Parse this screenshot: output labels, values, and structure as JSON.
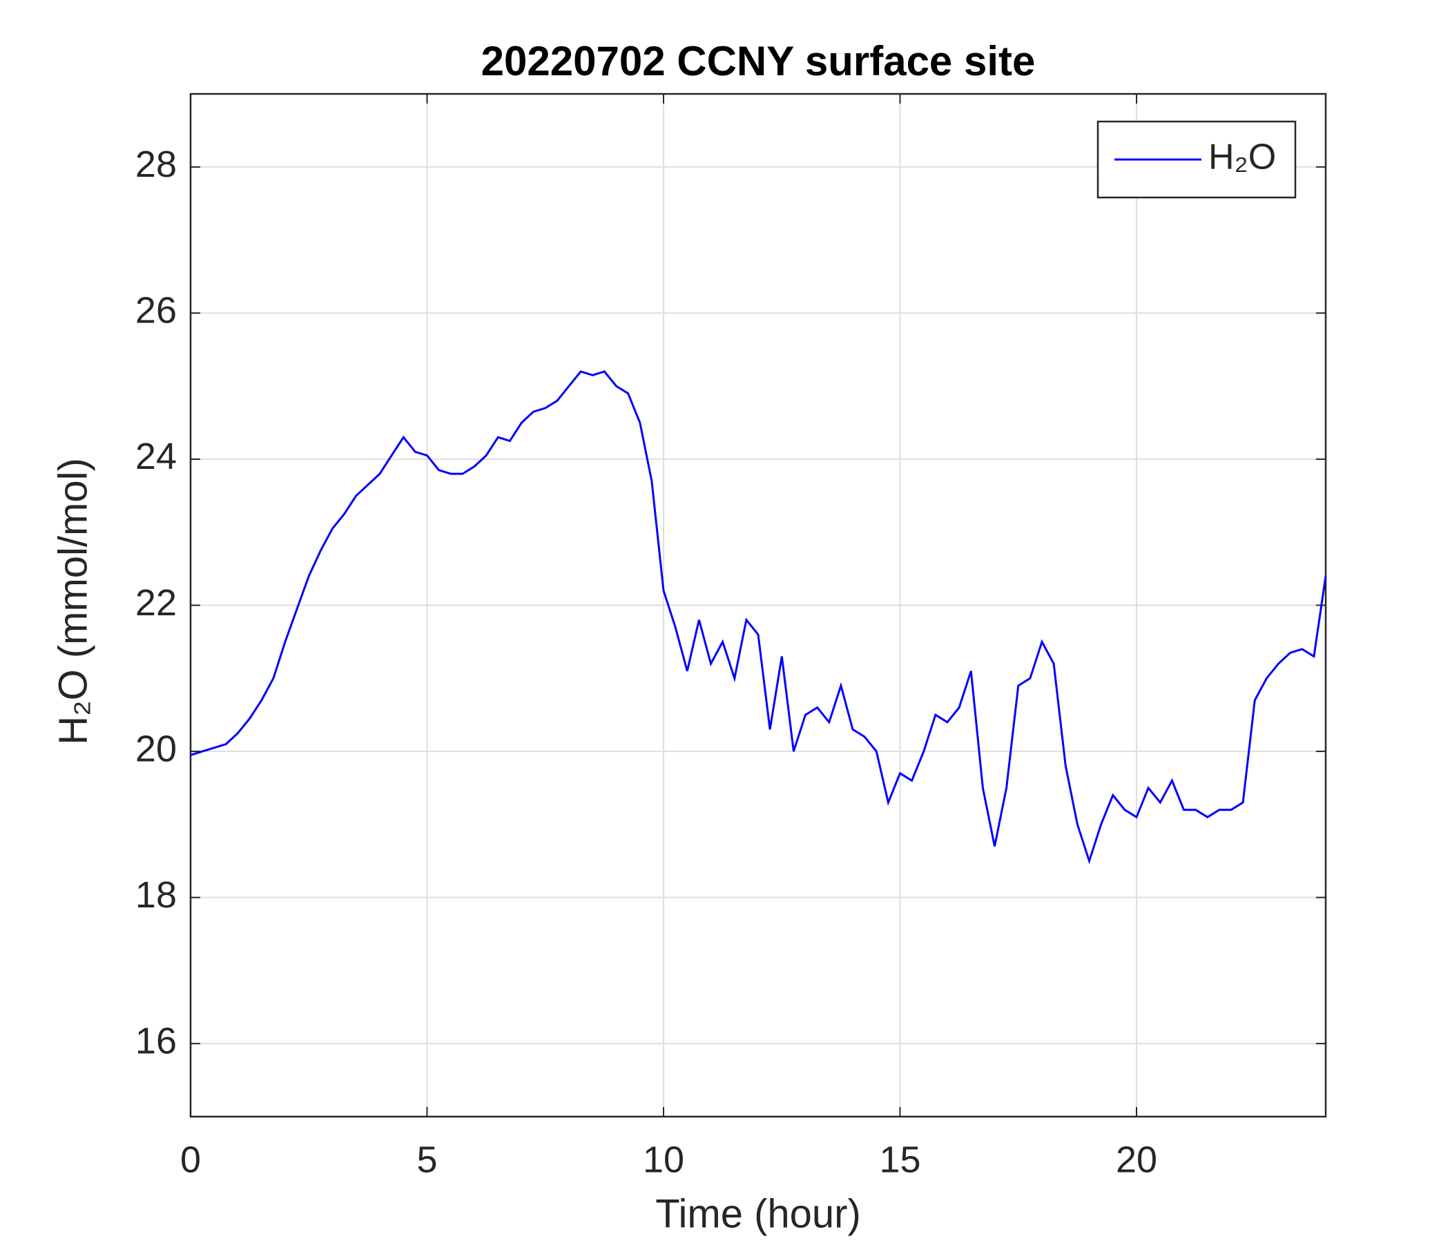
{
  "chart_data": {
    "type": "line",
    "title": "20220702 CCNY surface site",
    "x_label": "Time (hour)",
    "y_label": "H₂O (mmol/mol)",
    "x": [
      0,
      0.25,
      0.5,
      0.75,
      1,
      1.25,
      1.5,
      1.75,
      2,
      2.25,
      2.5,
      2.75,
      3,
      3.25,
      3.5,
      3.75,
      4,
      4.25,
      4.5,
      4.75,
      5,
      5.25,
      5.5,
      5.75,
      6,
      6.25,
      6.5,
      6.75,
      7,
      7.25,
      7.5,
      7.75,
      8,
      8.25,
      8.5,
      8.75,
      9,
      9.25,
      9.5,
      9.75,
      10,
      10.25,
      10.5,
      10.75,
      11,
      11.25,
      11.5,
      11.75,
      12,
      12.25,
      12.5,
      12.75,
      13,
      13.25,
      13.5,
      13.75,
      14,
      14.25,
      14.5,
      14.75,
      15,
      15.25,
      15.5,
      15.75,
      16,
      16.25,
      16.5,
      16.75,
      17,
      17.25,
      17.5,
      17.75,
      18,
      18.25,
      18.5,
      18.75,
      19,
      19.25,
      19.5,
      19.75,
      20,
      20.25,
      20.5,
      20.75,
      21,
      21.25,
      21.5,
      21.75,
      22,
      22.25,
      22.5,
      22.75,
      23,
      23.25,
      23.5,
      23.75,
      24
    ],
    "series": [
      {
        "name": "H₂O",
        "color": "#0000ff",
        "values": [
          19.95,
          20.0,
          20.05,
          20.1,
          20.25,
          20.45,
          20.7,
          21.0,
          21.5,
          21.95,
          22.4,
          22.75,
          23.05,
          23.25,
          23.5,
          23.65,
          23.8,
          24.05,
          24.3,
          24.1,
          24.05,
          23.85,
          23.8,
          23.8,
          23.9,
          24.05,
          24.3,
          24.25,
          24.5,
          24.65,
          24.7,
          24.8,
          25.0,
          25.2,
          25.15,
          25.2,
          25.0,
          24.9,
          24.5,
          23.7,
          22.2,
          21.7,
          21.1,
          21.8,
          21.2,
          21.5,
          21.0,
          21.8,
          21.6,
          20.3,
          21.3,
          20.0,
          20.5,
          20.6,
          20.4,
          20.9,
          20.3,
          20.2,
          20.0,
          19.3,
          19.7,
          19.6,
          20.0,
          20.5,
          20.4,
          20.6,
          21.1,
          19.5,
          18.7,
          19.5,
          20.9,
          21.0,
          21.5,
          21.2,
          19.8,
          19.0,
          18.5,
          19.0,
          19.4,
          19.2,
          19.1,
          19.5,
          19.3,
          19.6,
          19.2,
          19.2,
          19.1,
          19.2,
          19.2,
          19.3,
          20.7,
          21.0,
          21.2,
          21.35,
          21.4,
          21.3,
          22.4
        ]
      }
    ],
    "xlim": [
      0,
      24
    ],
    "xticks": [
      0,
      5,
      10,
      15,
      20
    ],
    "ylim": [
      15,
      29
    ],
    "yticks": [
      16,
      18,
      20,
      22,
      24,
      26,
      28
    ],
    "grid": true,
    "legend": "upper right"
  }
}
